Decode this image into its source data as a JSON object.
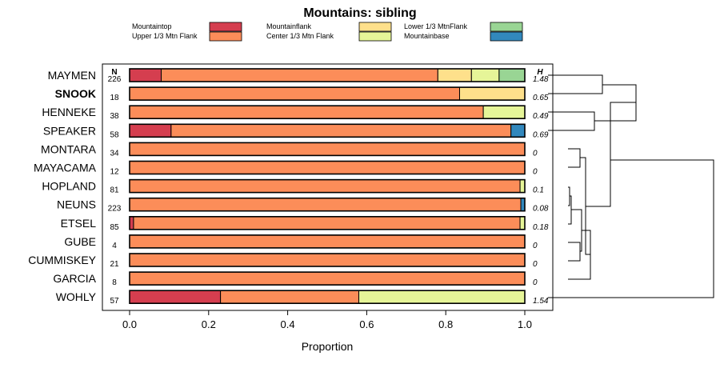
{
  "chart_data": {
    "type": "bar",
    "stacked": true,
    "orientation": "horizontal",
    "title": "Mountains: sibling",
    "xlabel": "Proportion",
    "ylabel": "",
    "xlim": [
      0,
      1
    ],
    "x_ticks": [
      "0.0",
      "0.2",
      "0.4",
      "0.6",
      "0.8",
      "1.0"
    ],
    "n_header": "N",
    "h_header": "H",
    "legend": [
      {
        "name": "Mountaintop",
        "color": "#d53e4f"
      },
      {
        "name": "Mountainflank",
        "color": "#fee08b"
      },
      {
        "name": "Lower 1/3 MtnFlank",
        "color": "#99d594"
      },
      {
        "name": "Upper 1/3 Mtn Flank",
        "color": "#fc8d59"
      },
      {
        "name": "Center 1/3 Mtn Flank",
        "color": "#e6f598"
      },
      {
        "name": "Mountainbase",
        "color": "#3288bd"
      }
    ],
    "categories": [
      "MAYMEN",
      "SNOOK",
      "HENNEKE",
      "SPEAKER",
      "MONTARA",
      "MAYACAMA",
      "HOPLAND",
      "NEUNS",
      "ETSEL",
      "GUBE",
      "CUMMISKEY",
      "GARCIA",
      "WOHLY"
    ],
    "highlight": "SNOOK",
    "n": [
      "226",
      "18",
      "38",
      "58",
      "34",
      "12",
      "81",
      "223",
      "85",
      "4",
      "21",
      "8",
      "57"
    ],
    "h": [
      "1.48",
      "0.65",
      "0.49",
      "0.69",
      "0",
      "0",
      "0.1",
      "0.08",
      "0.18",
      "0",
      "0",
      "0",
      "1.54"
    ],
    "series": [
      {
        "name": "Mountaintop",
        "values": [
          0.08,
          0,
          0,
          0.105,
          0,
          0,
          0,
          0,
          0.01,
          0,
          0,
          0,
          0.23
        ]
      },
      {
        "name": "Upper 1/3 Mtn Flank",
        "values": [
          0.7,
          0.835,
          0.895,
          0.86,
          1,
          1,
          0.988,
          0.99,
          0.978,
          1,
          1,
          1,
          0.35
        ]
      },
      {
        "name": "Mountainflank",
        "values": [
          0.085,
          0.165,
          0,
          0,
          0,
          0,
          0,
          0,
          0,
          0,
          0,
          0,
          0
        ]
      },
      {
        "name": "Center 1/3 Mtn Flank",
        "values": [
          0.07,
          0,
          0.105,
          0,
          0,
          0,
          0.012,
          0,
          0.012,
          0,
          0,
          0,
          0.42
        ]
      },
      {
        "name": "Lower 1/3 MtnFlank",
        "values": [
          0.065,
          0,
          0,
          0,
          0,
          0,
          0,
          0,
          0,
          0,
          0,
          0,
          0
        ]
      },
      {
        "name": "Mountainbase",
        "values": [
          0,
          0,
          0,
          0.035,
          0,
          0,
          0,
          0.01,
          0,
          0,
          0,
          0,
          0
        ]
      }
    ],
    "dendrogram": "hierarchical clustering of the 13 populations (no labels)"
  }
}
